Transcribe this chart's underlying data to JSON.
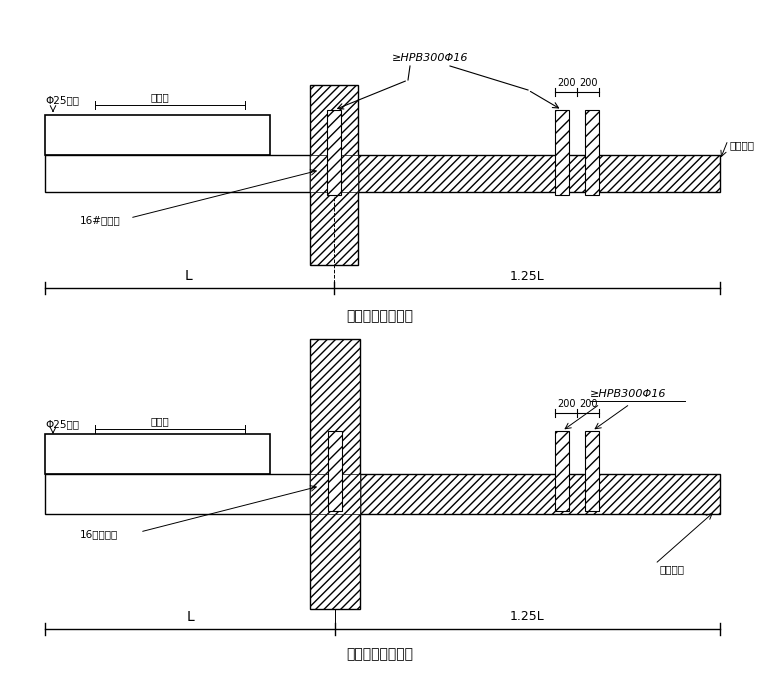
{
  "bg_color": "#ffffff",
  "title1": "悬挑钢梁楼面构造",
  "title2": "悬挑钢梁穿墙构造",
  "label_hpb1": "≥HPB300Φ16",
  "label_hpb2": "≥HPB300Φ16",
  "label_d25_1": "Φ25钢筋",
  "label_d25_2": "Φ25钢筋",
  "label_beam_width1": "同梁宽",
  "label_beam_width2": "同梁宽",
  "label_steel1": "16#工字钢",
  "label_steel2": "16号工字钢",
  "label_muju1": "木楔塞紧",
  "label_muju2": "木楔塞紧"
}
